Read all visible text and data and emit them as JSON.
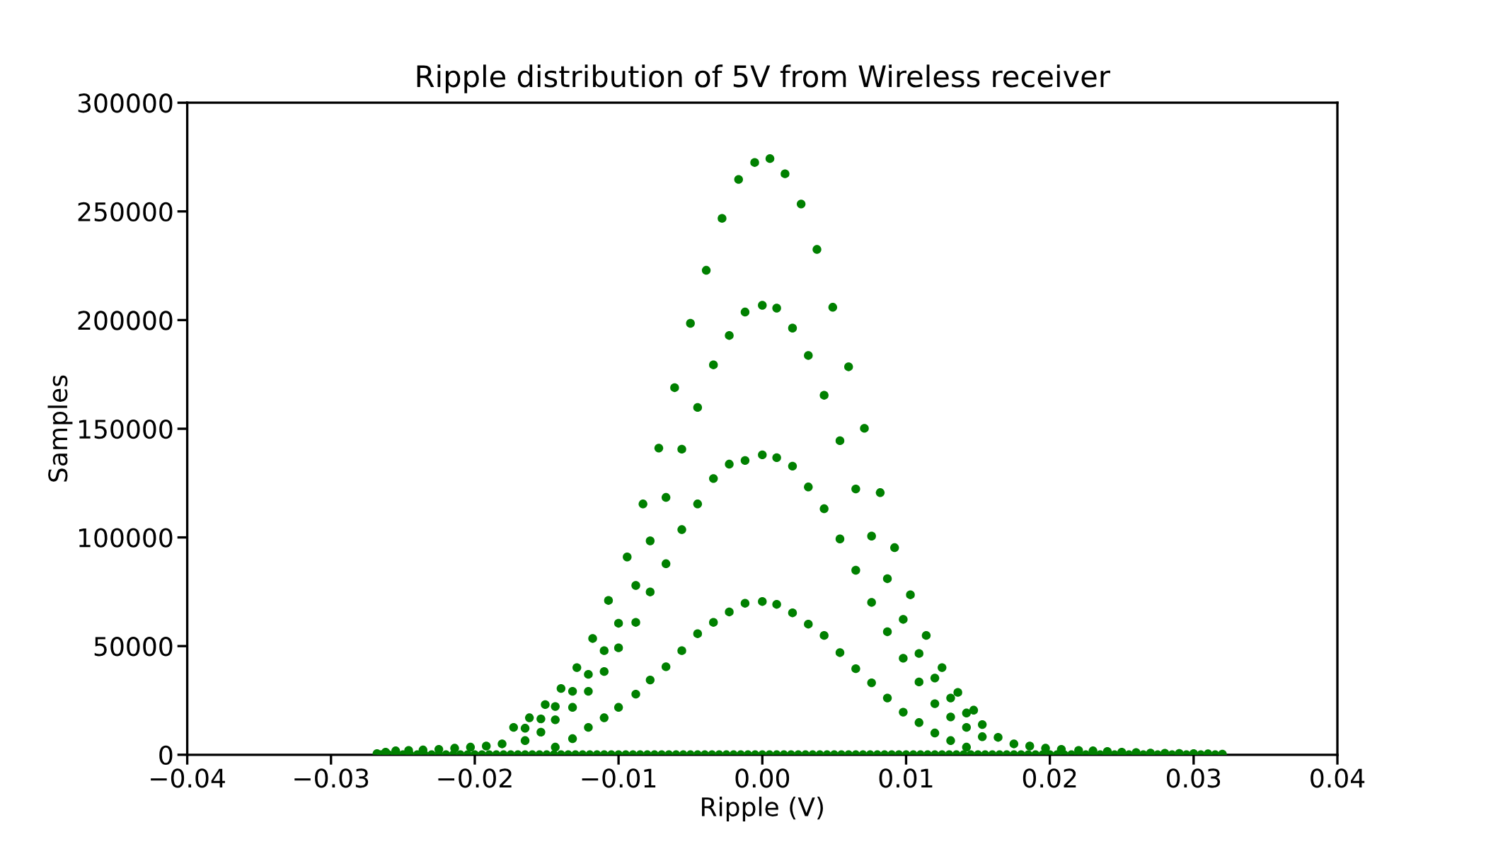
{
  "chart_data": {
    "type": "scatter",
    "title": "Ripple distribution of 5V from Wireless receiver",
    "xlabel": "Ripple (V)",
    "ylabel": "Samples",
    "xlim": [
      -0.04,
      0.04
    ],
    "xticks": [
      {
        "value": -0.04,
        "label": "−0.04"
      },
      {
        "value": -0.03,
        "label": "−0.03"
      },
      {
        "value": -0.02,
        "label": "−0.02"
      },
      {
        "value": -0.01,
        "label": "−0.01"
      },
      {
        "value": 0.0,
        "label": "0.00"
      },
      {
        "value": 0.01,
        "label": "0.01"
      },
      {
        "value": 0.02,
        "label": "0.02"
      },
      {
        "value": 0.03,
        "label": "0.03"
      },
      {
        "value": 0.04,
        "label": "0.04"
      }
    ],
    "ylim": [
      0,
      300000
    ],
    "yticks": [
      0,
      50000,
      100000,
      150000,
      200000,
      250000,
      300000
    ],
    "grid": false,
    "marker": "circle",
    "series": [
      {
        "color": "#008000",
        "x": [
          -0.0173,
          -0.0162,
          -0.0151,
          -0.014,
          -0.0129,
          -0.0118,
          -0.0107,
          -0.0094,
          -0.0083,
          -0.0072,
          -0.0061,
          -0.005,
          -0.0039,
          -0.0028,
          -0.00165,
          -0.00053,
          0.00053,
          0.00158,
          0.0027,
          0.0038,
          0.0049,
          0.006,
          0.0071,
          0.0082,
          0.0092,
          0.0103,
          0.0114,
          0.0125,
          0.0136,
          0.0147
        ],
        "values": [
          12600,
          17000,
          23100,
          30500,
          40100,
          53500,
          71000,
          91000,
          115400,
          141100,
          168900,
          198500,
          222900,
          246800,
          264700,
          272500,
          274300,
          267300,
          253400,
          232500,
          205900,
          178500,
          150200,
          120600,
          95300,
          73600,
          54900,
          40100,
          28700,
          20500
        ]
      },
      {
        "color": "#008000",
        "x": [
          -0.0165,
          -0.0154,
          -0.0144,
          -0.0132,
          -0.0121,
          -0.011,
          -0.01,
          -0.0088,
          -0.0078,
          -0.0067,
          -0.0056,
          -0.0045,
          -0.0034,
          -0.0023,
          -0.0012,
          0.0,
          0.001,
          0.0021,
          0.0032,
          0.0043,
          0.0054,
          0.0065,
          0.0076,
          0.0087,
          0.0098,
          0.0109,
          0.012,
          0.0131,
          0.0142,
          0.0153
        ],
        "values": [
          12200,
          16500,
          22200,
          29200,
          37000,
          47900,
          60500,
          77900,
          98400,
          118400,
          140600,
          159800,
          179400,
          192900,
          203700,
          206800,
          205500,
          196300,
          183700,
          165400,
          144500,
          122300,
          100600,
          81000,
          62300,
          46600,
          35300,
          26100,
          19200,
          13900
        ]
      },
      {
        "color": "#008000",
        "x": [
          -0.0165,
          -0.0154,
          -0.0144,
          -0.0132,
          -0.0121,
          -0.011,
          -0.01,
          -0.0088,
          -0.0078,
          -0.0067,
          -0.0056,
          -0.0045,
          -0.0034,
          -0.0023,
          -0.0012,
          0.0,
          0.001,
          0.0021,
          0.0032,
          0.0043,
          0.0054,
          0.0065,
          0.0076,
          0.0087,
          0.0098,
          0.0109,
          0.012,
          0.0131,
          0.0142,
          0.0153
        ],
        "values": [
          6500,
          10400,
          16100,
          21800,
          29200,
          38300,
          49200,
          60900,
          74900,
          87900,
          103600,
          115400,
          127100,
          133700,
          135400,
          138000,
          136700,
          132800,
          123200,
          113200,
          99300,
          84900,
          70100,
          56600,
          44400,
          33500,
          23500,
          17400,
          12600,
          8300
        ]
      },
      {
        "color": "#008000",
        "x": [
          -0.0144,
          -0.0132,
          -0.0121,
          -0.011,
          -0.01,
          -0.0088,
          -0.0078,
          -0.0067,
          -0.0056,
          -0.0045,
          -0.0034,
          -0.0023,
          -0.0012,
          0.0,
          0.001,
          0.0021,
          0.0032,
          0.0043,
          0.0054,
          0.0065,
          0.0076,
          0.0087,
          0.0098,
          0.0109,
          0.012,
          0.0131,
          0.0142
        ],
        "values": [
          3500,
          7400,
          12600,
          17000,
          21800,
          27900,
          34400,
          40500,
          47900,
          55700,
          60900,
          65700,
          69700,
          70500,
          69200,
          65300,
          60100,
          54900,
          47000,
          39600,
          33100,
          26100,
          19600,
          14800,
          10000,
          6500,
          3500
        ]
      },
      {
        "color": "#008000",
        "x": [
          -0.0268,
          -0.0262,
          -0.0255,
          -0.0246,
          -0.0236,
          -0.0225,
          -0.0214,
          -0.0203,
          -0.0192,
          -0.0181,
          0.0164,
          0.0175,
          0.0186,
          0.0197,
          0.0208,
          0.022,
          0.023,
          0.024,
          0.025,
          0.026,
          0.027,
          0.028,
          0.029,
          0.03,
          0.031,
          0.032
        ],
        "values": [
          500,
          1200,
          1800,
          2000,
          2200,
          2500,
          3000,
          3500,
          4000,
          5000,
          8000,
          5000,
          4000,
          3000,
          2500,
          2000,
          1800,
          1500,
          1200,
          1000,
          800,
          700,
          600,
          500,
          400,
          300
        ]
      },
      {
        "color": "#008000",
        "x": [
          -0.0265,
          -0.026,
          -0.0255,
          -0.025,
          -0.0245,
          -0.024,
          -0.0235,
          -0.023,
          -0.0225,
          -0.022,
          -0.0215,
          -0.021,
          -0.0205,
          -0.02,
          -0.0195,
          -0.019,
          -0.0185,
          -0.018,
          -0.0175,
          -0.017,
          -0.0165,
          -0.016,
          -0.0155,
          -0.015,
          -0.0145,
          -0.014,
          -0.0135,
          -0.013,
          -0.0125,
          -0.012,
          -0.0115,
          -0.011,
          -0.0105,
          -0.01,
          -0.0095,
          -0.009,
          -0.0085,
          -0.008,
          -0.0075,
          -0.007,
          -0.0065,
          -0.006,
          -0.0055,
          -0.005,
          -0.0045,
          -0.004,
          -0.0035,
          -0.003,
          -0.0025,
          -0.002,
          -0.0015,
          -0.001,
          -0.0005,
          0.0,
          0.0005,
          0.001,
          0.0015,
          0.002,
          0.0025,
          0.003,
          0.0035,
          0.004,
          0.0045,
          0.005,
          0.0055,
          0.006,
          0.0065,
          0.007,
          0.0075,
          0.008,
          0.0085,
          0.009,
          0.0095,
          0.01,
          0.0105,
          0.011,
          0.0115,
          0.012,
          0.0125,
          0.013,
          0.0135,
          0.014,
          0.0145,
          0.015,
          0.0155,
          0.016,
          0.0165,
          0.017,
          0.0175,
          0.018,
          0.0185,
          0.019,
          0.0195,
          0.02,
          0.0205,
          0.021,
          0.0215,
          0.022,
          0.0225,
          0.023,
          0.0235,
          0.024,
          0.0245,
          0.025,
          0.0255,
          0.026,
          0.0265,
          0.027,
          0.0275,
          0.028,
          0.0285,
          0.029,
          0.0295,
          0.03,
          0.0305,
          0.031,
          0.0315,
          0.032
        ],
        "values": [
          0,
          0,
          0,
          0,
          0,
          0,
          0,
          0,
          0,
          0,
          0,
          0,
          0,
          0,
          0,
          0,
          0,
          0,
          0,
          0,
          0,
          0,
          0,
          0,
          0,
          0,
          0,
          0,
          0,
          0,
          0,
          0,
          0,
          0,
          0,
          0,
          0,
          0,
          0,
          0,
          0,
          0,
          0,
          0,
          0,
          0,
          0,
          0,
          0,
          0,
          0,
          0,
          0,
          0,
          0,
          0,
          0,
          0,
          0,
          0,
          0,
          0,
          0,
          0,
          0,
          0,
          0,
          0,
          0,
          0,
          0,
          0,
          0,
          0,
          0,
          0,
          0,
          0,
          0,
          0,
          0,
          0,
          0,
          0,
          0,
          0,
          0,
          0,
          0,
          0,
          0,
          0,
          0,
          0,
          0,
          0,
          0,
          0,
          0,
          0,
          0,
          0,
          0,
          0,
          0,
          0,
          0,
          0,
          0,
          0,
          0,
          0,
          0,
          0,
          0,
          0,
          0,
          0
        ]
      }
    ]
  }
}
